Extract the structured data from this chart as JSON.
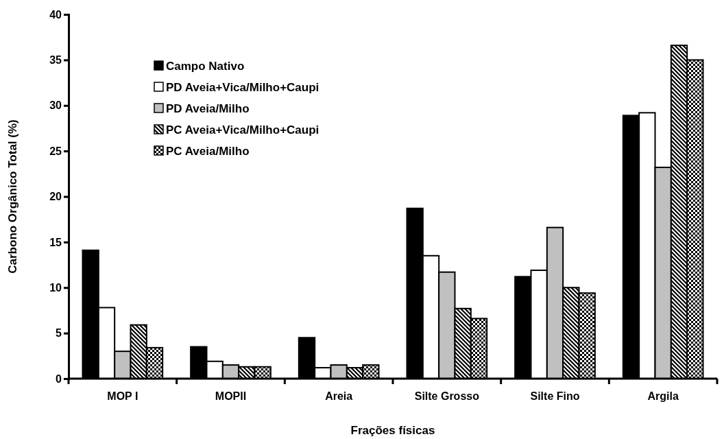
{
  "chart_data": {
    "type": "bar",
    "xlabel": "Frações físicas",
    "ylabel": "Carbono Orgânico Total (%)",
    "categories": [
      "MOP I",
      "MOPII",
      "Areia",
      "Silte Grosso",
      "Silte Fino",
      "Argila"
    ],
    "series": [
      {
        "name": "Campo Nativo",
        "color": "#000000",
        "values": [
          14.1,
          3.5,
          4.5,
          18.7,
          11.2,
          28.9
        ]
      },
      {
        "name": "PD Aveia+Vica/Milho+Caupi",
        "color": "#ffffff",
        "values": [
          7.8,
          1.9,
          1.2,
          13.5,
          11.9,
          29.2
        ]
      },
      {
        "name": "PD Aveia/Milho",
        "color": "#c0c0c0",
        "values": [
          3.0,
          1.5,
          1.5,
          11.7,
          16.6,
          23.2
        ]
      },
      {
        "name": "PC Aveia+Vica/Milho+Caupi",
        "color": "#000000",
        "values": [
          5.9,
          1.3,
          1.2,
          7.7,
          10.0,
          36.6
        ]
      },
      {
        "name": "PC Aveia/Milho",
        "color": "#000000",
        "values": [
          3.4,
          1.3,
          1.5,
          6.6,
          9.4,
          35.0
        ]
      }
    ],
    "ylim": [
      0,
      40
    ],
    "yticks": [
      0,
      5,
      10,
      15,
      20,
      25,
      30,
      35,
      40
    ],
    "grid": false,
    "legend": "top left"
  }
}
